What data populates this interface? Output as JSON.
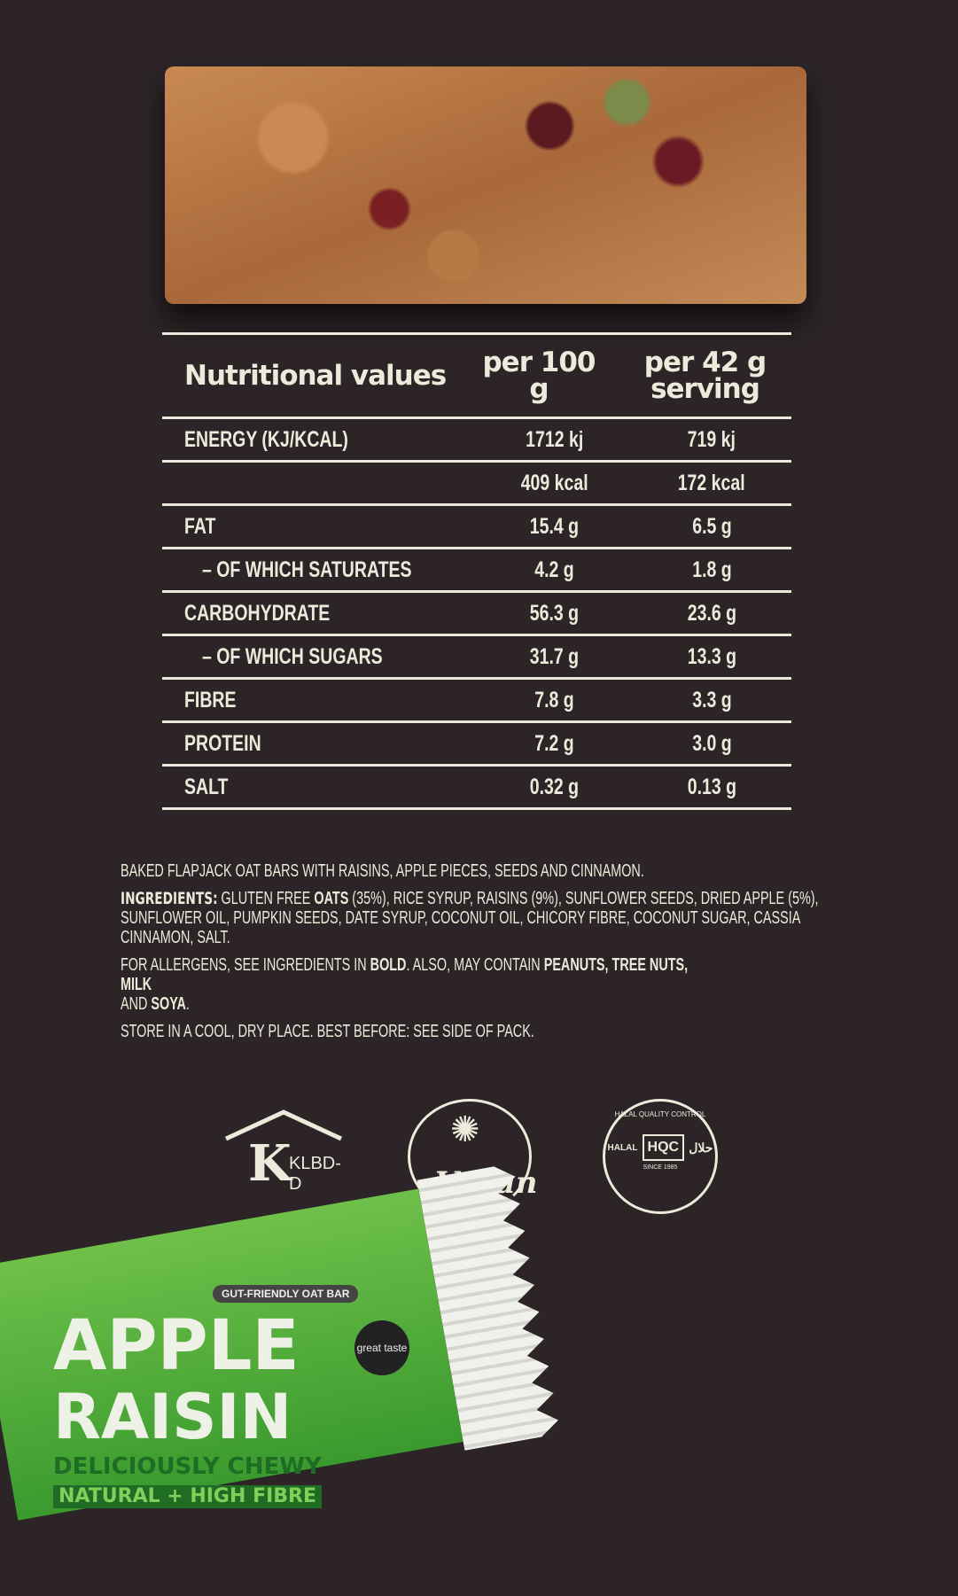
{
  "table": {
    "header": {
      "label": "Nutritional values",
      "per100": "per 100 g",
      "serving": "per 42 g serving"
    },
    "rows": [
      {
        "label": "ENERGY (KJ/KCAL)",
        "per100": "1712 kj",
        "serving": "719 kj"
      },
      {
        "label": "",
        "per100": "409 kcal",
        "serving": "172 kcal"
      },
      {
        "label": "FAT",
        "per100": "15.4 g",
        "serving": "6.5 g"
      },
      {
        "label": "– OF WHICH SATURATES",
        "per100": "4.2 g",
        "serving": "1.8 g"
      },
      {
        "label": "CARBOHYDRATE",
        "per100": "56.3 g",
        "serving": "23.6 g"
      },
      {
        "label": "– OF WHICH SUGARS",
        "per100": "31.7 g",
        "serving": "13.3 g"
      },
      {
        "label": "FIBRE",
        "per100": "7.8 g",
        "serving": "3.3 g"
      },
      {
        "label": "PROTEIN",
        "per100": "7.2 g",
        "serving": "3.0 g"
      },
      {
        "label": "SALT",
        "per100": "0.32 g",
        "serving": "0.13 g"
      }
    ]
  },
  "description": "BAKED FLAPJACK OAT BARS WITH RAISINS, APPLE PIECES, SEEDS AND CINNAMON.",
  "ingredients": {
    "label": "INGREDIENTS:",
    "p1": "GLUTEN FREE ",
    "b1": "OATS",
    "p2": " (35%), RICE SYRUP, RAISINS (9%), SUNFLOWER SEEDS, DRIED APPLE (5%), SUNFLOWER OIL, PUMPKIN SEEDS, DATE SYRUP, COCONUT OIL, CHICORY FIBRE, COCONUT SUGAR, CASSIA CINNAMON, SALT."
  },
  "allergens": {
    "p1": "FOR ALLERGENS, SEE INGREDIENTS IN ",
    "b1": "BOLD",
    "p2": ". ALSO, MAY CONTAIN ",
    "b2": "PEANUTS, TREE NUTS, MILK",
    "p3": " AND ",
    "b3": "SOYA",
    "p4": "."
  },
  "storage": "STORE IN A COOL, DRY PLACE. BEST BEFORE: SEE SIDE OF PACK.",
  "logos": {
    "klbd": "KLBD-D",
    "vegan": "Vegan",
    "hqc_top": "HALAL QUALITY CONTROL",
    "hqc": "HQC",
    "hqc_halal": "HALAL",
    "hqc_since": "SINCE 1985",
    "hqc_arabic": "حلال"
  },
  "pack": {
    "tag": "GUT-FRIENDLY OAT BAR",
    "line1": "APPLE",
    "line2": "RAISIN",
    "sub1": "DELICIOUSLY CHEWY",
    "sub2": "NATURAL + HIGH FIBRE",
    "award": "great taste"
  },
  "colors": {
    "background": "#2c2426",
    "text": "#eceadb",
    "pack_green": "#4caf3a"
  }
}
